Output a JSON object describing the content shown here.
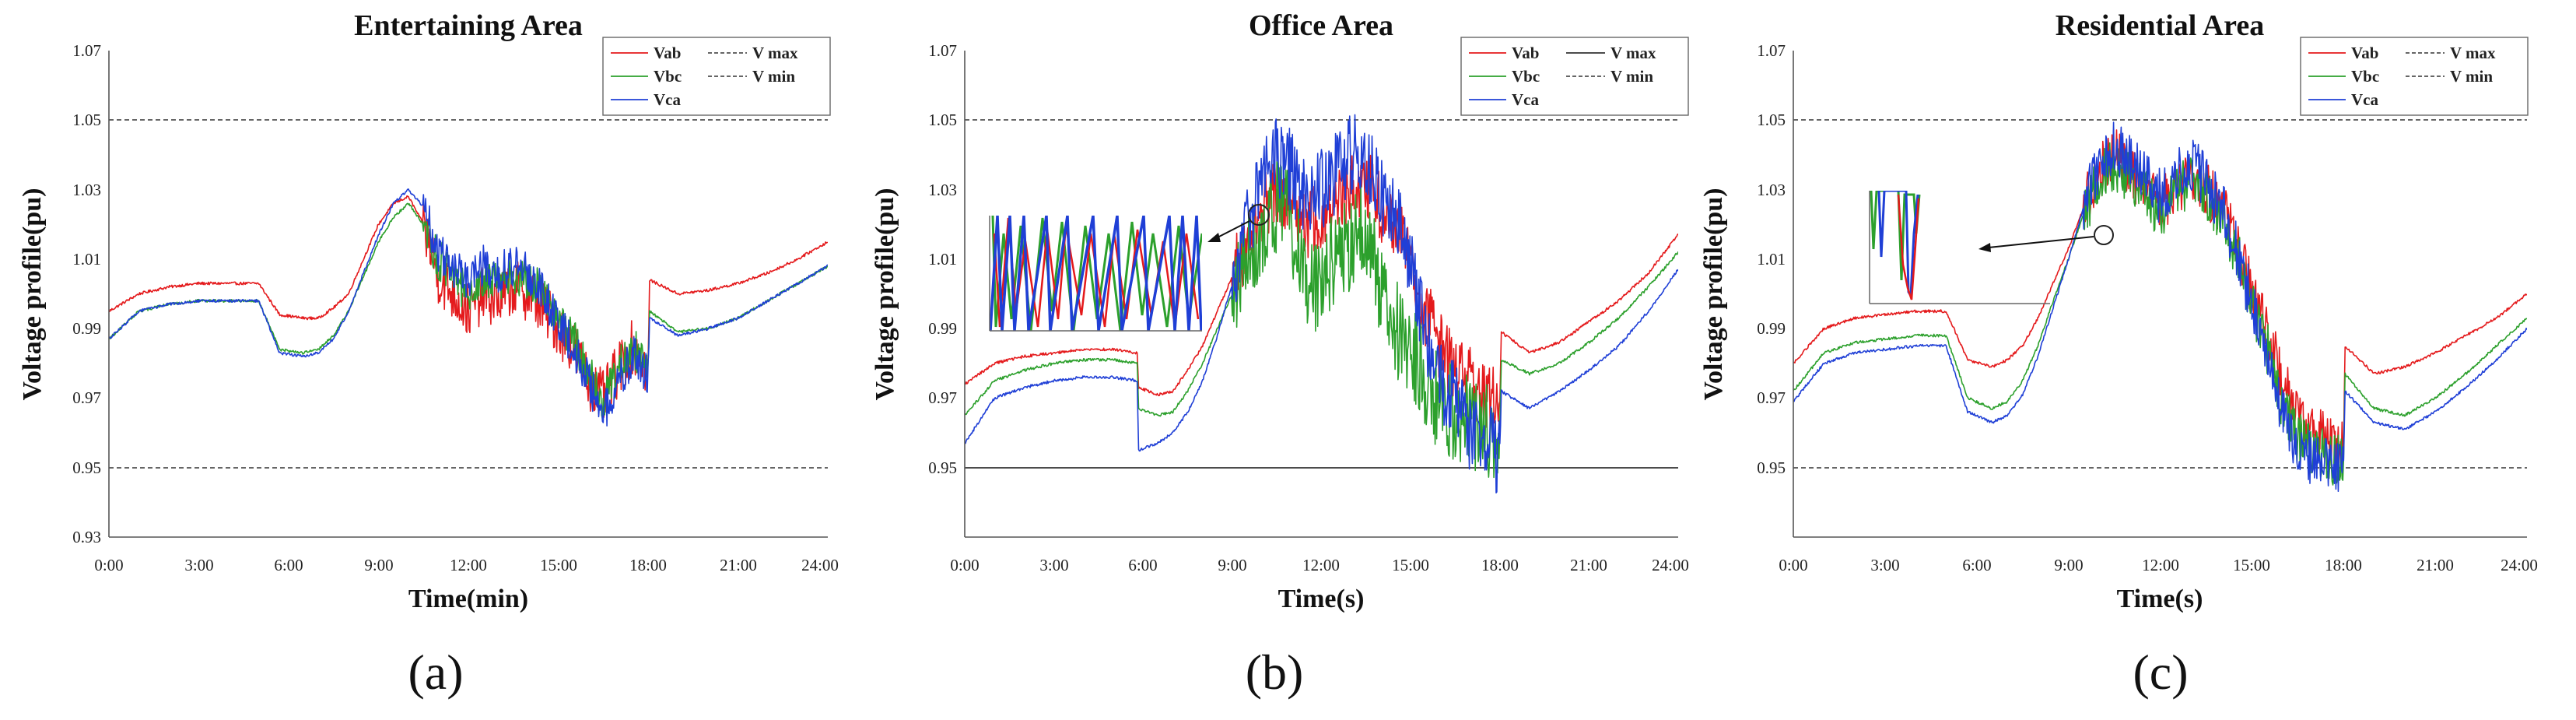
{
  "figure": {
    "background": "#ffffff"
  },
  "chart_data": [
    {
      "type": "line",
      "panel_label": "(a)",
      "title": "Entertaining Area",
      "xlabel": "Time(min)",
      "ylabel": "Voltage profile(pu)",
      "xlim": [
        0,
        24
      ],
      "ylim": [
        0.93,
        1.07
      ],
      "x_ticks": [
        "0:00",
        "3:00",
        "6:00",
        "9:00",
        "12:00",
        "15:00",
        "18:00",
        "21:00",
        "24:00"
      ],
      "y_ticks": [
        "0.93",
        "0.95",
        "0.97",
        "0.99",
        "1.01",
        "1.03",
        "1.05",
        "1.07"
      ],
      "legend_position": "top-right",
      "limit_lines": [
        {
          "name": "V max",
          "value": 1.05,
          "style": "dashed"
        },
        {
          "name": "V min",
          "value": 0.95,
          "style": "dashed"
        }
      ],
      "series": [
        {
          "name": "Vab",
          "color": "#e41a1c",
          "x": [
            0,
            1,
            2,
            3,
            4,
            5,
            5.7,
            6.5,
            7,
            7.5,
            8,
            8.5,
            9,
            9.5,
            10,
            10.5,
            11,
            11.5,
            12,
            12.5,
            13,
            13.5,
            14,
            14.5,
            15,
            15.5,
            16,
            16.5,
            17,
            17.5,
            18,
            18.05,
            19,
            20,
            21,
            22,
            23,
            24
          ],
          "y": [
            0.995,
            1.0,
            1.002,
            1.003,
            1.003,
            1.003,
            0.994,
            0.993,
            0.993,
            0.996,
            1.0,
            1.01,
            1.02,
            1.026,
            1.028,
            1.02,
            1.005,
            1.0,
            0.995,
            1.0,
            0.998,
            1.002,
            1.0,
            0.996,
            0.99,
            0.985,
            0.975,
            0.97,
            0.978,
            0.985,
            0.978,
            1.004,
            1.0,
            1.001,
            1.003,
            1.006,
            1.01,
            1.015
          ],
          "noise": 0.008,
          "noise_range": [
            10.5,
            18
          ]
        },
        {
          "name": "Vbc",
          "color": "#2ca02c",
          "x": [
            0,
            1,
            2,
            3,
            4,
            5,
            5.7,
            6.5,
            7,
            7.5,
            8,
            8.5,
            9,
            9.5,
            10,
            10.5,
            11,
            11.5,
            12,
            12.5,
            13,
            13.5,
            14,
            14.5,
            15,
            15.5,
            16,
            16.5,
            17,
            17.5,
            18,
            18.05,
            19,
            20,
            21,
            22,
            23,
            24
          ],
          "y": [
            0.987,
            0.995,
            0.997,
            0.998,
            0.998,
            0.998,
            0.984,
            0.983,
            0.984,
            0.988,
            0.995,
            1.005,
            1.015,
            1.022,
            1.026,
            1.02,
            1.01,
            1.005,
            1.0,
            1.005,
            1.003,
            1.006,
            1.004,
            1.0,
            0.993,
            0.987,
            0.978,
            0.968,
            0.978,
            0.985,
            0.977,
            0.995,
            0.989,
            0.99,
            0.993,
            0.998,
            1.003,
            1.008
          ],
          "noise": 0.006,
          "noise_range": [
            10.5,
            18
          ]
        },
        {
          "name": "Vca",
          "color": "#1f3fd6",
          "x": [
            0,
            1,
            2,
            3,
            4,
            5,
            5.7,
            6.5,
            7,
            7.5,
            8,
            8.5,
            9,
            9.5,
            10,
            10.5,
            11,
            11.5,
            12,
            12.5,
            13,
            13.5,
            14,
            14.5,
            15,
            15.5,
            16,
            16.5,
            17,
            17.5,
            18,
            18.05,
            19,
            20,
            21,
            22,
            23,
            24
          ],
          "y": [
            0.987,
            0.995,
            0.997,
            0.998,
            0.998,
            0.998,
            0.983,
            0.982,
            0.983,
            0.987,
            0.995,
            1.006,
            1.017,
            1.026,
            1.03,
            1.025,
            1.012,
            1.008,
            1.004,
            1.008,
            1.006,
            1.008,
            1.006,
            1.0,
            0.992,
            0.985,
            0.975,
            0.965,
            0.975,
            0.982,
            0.976,
            0.993,
            0.988,
            0.99,
            0.993,
            0.998,
            1.003,
            1.008
          ],
          "noise": 0.006,
          "noise_range": [
            10.5,
            18
          ]
        }
      ]
    },
    {
      "type": "line",
      "panel_label": "(b)",
      "title": "Office Area",
      "xlabel": "Time(s)",
      "ylabel": "Voltage profile(pu)",
      "xlim": [
        0,
        24
      ],
      "ylim": [
        0.93,
        1.07
      ],
      "x_ticks": [
        "0:00",
        "3:00",
        "6:00",
        "9:00",
        "12:00",
        "15:00",
        "18:00",
        "21:00",
        "24:00"
      ],
      "y_ticks": [
        "0.95",
        "0.97",
        "0.99",
        "1.01",
        "1.03",
        "1.05",
        "1.07"
      ],
      "legend_position": "top-right",
      "limit_lines": [
        {
          "name": "V max",
          "value": 1.05,
          "style": "dashed"
        },
        {
          "name": "V min",
          "value": 0.95,
          "style": "solid"
        }
      ],
      "inset": true,
      "series": [
        {
          "name": "Vab",
          "color": "#e41a1c",
          "x": [
            0,
            1,
            2,
            3,
            4,
            5,
            5.8,
            5.85,
            6.5,
            7,
            7.5,
            8,
            8.5,
            9,
            9.5,
            10,
            10.5,
            11,
            11.5,
            12,
            12.5,
            13,
            13.5,
            14,
            14.5,
            15,
            15.5,
            16,
            16.5,
            17,
            17.5,
            18,
            18.05,
            19,
            20,
            21,
            22,
            23,
            24
          ],
          "y": [
            0.974,
            0.98,
            0.982,
            0.983,
            0.984,
            0.984,
            0.983,
            0.973,
            0.971,
            0.972,
            0.978,
            0.985,
            0.995,
            1.005,
            1.015,
            1.025,
            1.03,
            1.027,
            1.02,
            1.022,
            1.026,
            1.03,
            1.032,
            1.025,
            1.02,
            1.012,
            0.995,
            0.985,
            0.978,
            0.975,
            0.97,
            0.968,
            0.989,
            0.983,
            0.986,
            0.992,
            0.998,
            1.006,
            1.017
          ],
          "noise": 0.01,
          "noise_range": [
            9,
            18
          ]
        },
        {
          "name": "Vbc",
          "color": "#2ca02c",
          "x": [
            0,
            1,
            2,
            3,
            4,
            5,
            5.8,
            5.85,
            6.5,
            7,
            7.5,
            8,
            8.5,
            9,
            9.5,
            10,
            10.5,
            11,
            11.5,
            12,
            12.5,
            13,
            13.5,
            14,
            14.5,
            15,
            15.5,
            16,
            16.5,
            17,
            17.5,
            18,
            18.05,
            19,
            20,
            21,
            22,
            23,
            24
          ],
          "y": [
            0.965,
            0.975,
            0.978,
            0.98,
            0.981,
            0.981,
            0.98,
            0.967,
            0.965,
            0.966,
            0.972,
            0.98,
            0.99,
            1.0,
            1.01,
            1.02,
            1.025,
            1.02,
            1.0,
            1.005,
            1.01,
            1.015,
            1.02,
            1.0,
            0.99,
            0.985,
            0.975,
            0.968,
            0.965,
            0.962,
            0.96,
            0.96,
            0.981,
            0.977,
            0.98,
            0.986,
            0.993,
            1.002,
            1.012
          ],
          "noise": 0.014,
          "noise_range": [
            9,
            18
          ]
        },
        {
          "name": "Vca",
          "color": "#1f3fd6",
          "x": [
            0,
            1,
            2,
            3,
            4,
            5,
            5.8,
            5.85,
            6.5,
            7,
            7.5,
            8,
            8.5,
            9,
            9.5,
            10,
            10.5,
            11,
            11.5,
            12,
            12.5,
            13,
            13.5,
            14,
            14.5,
            15,
            15.5,
            16,
            16.5,
            17,
            17.5,
            18,
            18.05,
            19,
            20,
            21,
            22,
            23,
            24
          ],
          "y": [
            0.957,
            0.97,
            0.973,
            0.975,
            0.976,
            0.976,
            0.975,
            0.955,
            0.957,
            0.96,
            0.966,
            0.975,
            0.988,
            1.003,
            1.018,
            1.035,
            1.04,
            1.035,
            1.025,
            1.03,
            1.035,
            1.04,
            1.04,
            1.03,
            1.02,
            1.01,
            0.99,
            0.975,
            0.968,
            0.96,
            0.958,
            0.952,
            0.972,
            0.967,
            0.972,
            0.978,
            0.985,
            0.995,
            1.007
          ],
          "noise": 0.012,
          "noise_range": [
            9,
            18
          ]
        }
      ]
    },
    {
      "type": "line",
      "panel_label": "(c)",
      "title": "Residential Area",
      "xlabel": "Time(s)",
      "ylabel": "Voltage profile(pu)",
      "xlim": [
        0,
        24
      ],
      "ylim": [
        0.93,
        1.07
      ],
      "x_ticks": [
        "0:00",
        "3:00",
        "6:00",
        "9:00",
        "12:00",
        "15:00",
        "18:00",
        "21:00",
        "24:00"
      ],
      "y_ticks": [
        "0.95",
        "0.97",
        "0.99",
        "1.01",
        "1.03",
        "1.05",
        "1.07"
      ],
      "legend_position": "top-right",
      "limit_lines": [
        {
          "name": "V max",
          "value": 1.05,
          "style": "dashed"
        },
        {
          "name": "V min",
          "value": 0.95,
          "style": "dashed"
        }
      ],
      "inset": true,
      "series": [
        {
          "name": "Vab",
          "color": "#e41a1c",
          "x": [
            0,
            1,
            2,
            3,
            4,
            5,
            5.7,
            6.5,
            7,
            7.5,
            8,
            8.5,
            9,
            9.5,
            10,
            10.5,
            11,
            11.5,
            12,
            12.5,
            13,
            13.5,
            14,
            14.5,
            15,
            15.5,
            16,
            16.5,
            17,
            17.5,
            18,
            18.05,
            19,
            20,
            21,
            22,
            23,
            24
          ],
          "y": [
            0.98,
            0.99,
            0.993,
            0.994,
            0.995,
            0.995,
            0.981,
            0.979,
            0.981,
            0.985,
            0.993,
            1.003,
            1.013,
            1.025,
            1.035,
            1.04,
            1.035,
            1.03,
            1.025,
            1.03,
            1.035,
            1.03,
            1.025,
            1.015,
            1.0,
            0.99,
            0.975,
            0.965,
            0.96,
            0.958,
            0.957,
            0.985,
            0.977,
            0.979,
            0.983,
            0.988,
            0.993,
            1.0
          ],
          "noise": 0.008,
          "noise_range": [
            9.5,
            18
          ]
        },
        {
          "name": "Vbc",
          "color": "#2ca02c",
          "x": [
            0,
            1,
            2,
            3,
            4,
            5,
            5.7,
            6.5,
            7,
            7.5,
            8,
            8.5,
            9,
            9.5,
            10,
            10.5,
            11,
            11.5,
            12,
            12.5,
            13,
            13.5,
            14,
            14.5,
            15,
            15.5,
            16,
            16.5,
            17,
            17.5,
            18,
            18.05,
            19,
            20,
            21,
            22,
            23,
            24
          ],
          "y": [
            0.972,
            0.983,
            0.986,
            0.987,
            0.988,
            0.988,
            0.97,
            0.967,
            0.969,
            0.975,
            0.985,
            0.998,
            1.01,
            1.023,
            1.033,
            1.038,
            1.033,
            1.028,
            1.023,
            1.028,
            1.033,
            1.028,
            1.023,
            1.012,
            0.998,
            0.985,
            0.968,
            0.958,
            0.955,
            0.953,
            0.953,
            0.977,
            0.967,
            0.965,
            0.97,
            0.977,
            0.985,
            0.993
          ],
          "noise": 0.008,
          "noise_range": [
            9.5,
            18
          ]
        },
        {
          "name": "Vca",
          "color": "#1f3fd6",
          "x": [
            0,
            1,
            2,
            3,
            4,
            5,
            5.7,
            6.5,
            7,
            7.5,
            8,
            8.5,
            9,
            9.5,
            10,
            10.5,
            11,
            11.5,
            12,
            12.5,
            13,
            13.5,
            14,
            14.5,
            15,
            15.5,
            16,
            16.5,
            17,
            17.5,
            18,
            18.05,
            19,
            20,
            21,
            22,
            23,
            24
          ],
          "y": [
            0.969,
            0.98,
            0.983,
            0.984,
            0.985,
            0.985,
            0.966,
            0.963,
            0.965,
            0.971,
            0.982,
            0.996,
            1.01,
            1.025,
            1.037,
            1.043,
            1.038,
            1.033,
            1.028,
            1.033,
            1.038,
            1.032,
            1.025,
            1.013,
            0.997,
            0.982,
            0.965,
            0.955,
            0.952,
            0.951,
            0.951,
            0.972,
            0.963,
            0.961,
            0.966,
            0.973,
            0.981,
            0.99
          ],
          "noise": 0.008,
          "noise_range": [
            9.5,
            18
          ]
        }
      ]
    }
  ]
}
